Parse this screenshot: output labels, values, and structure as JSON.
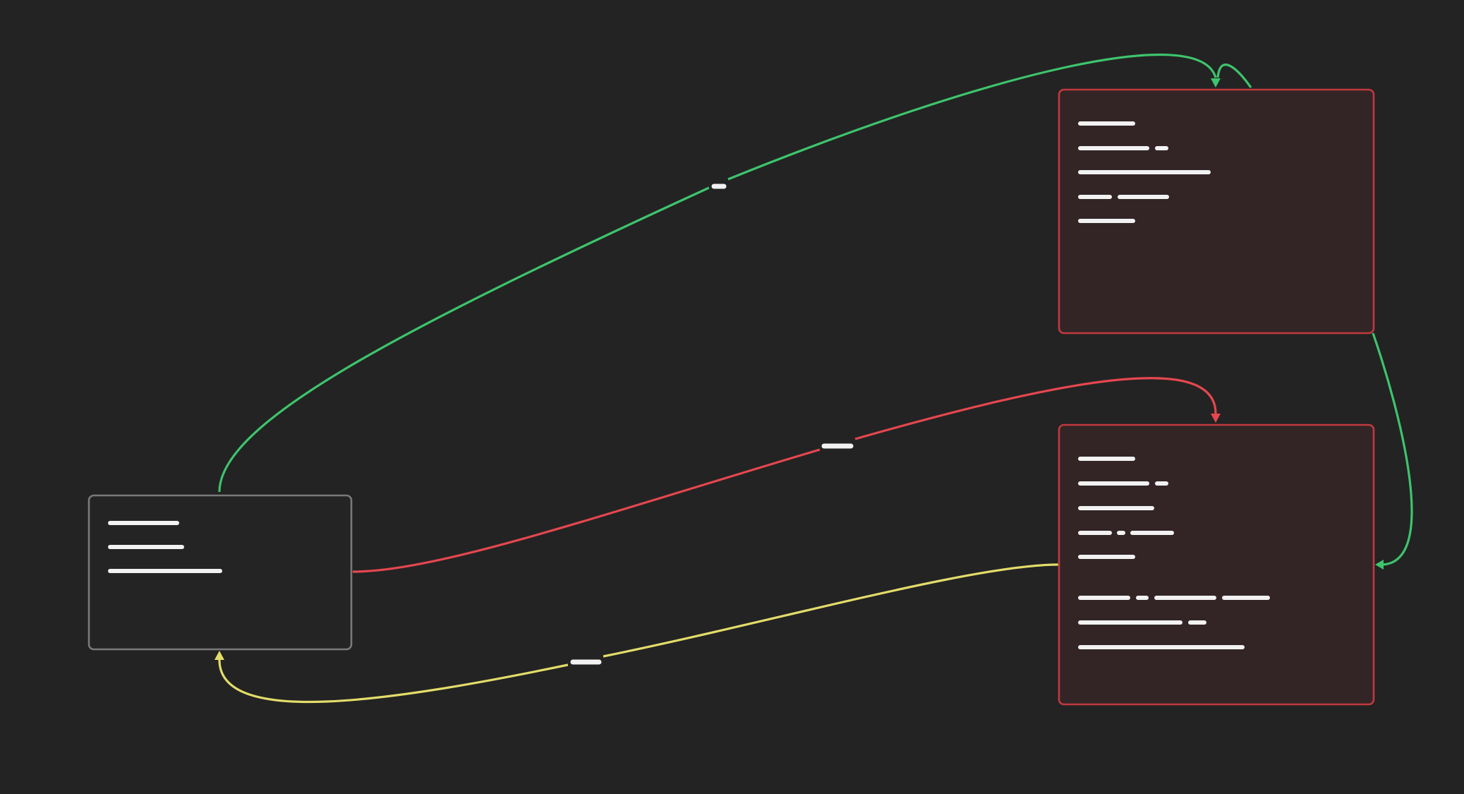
{
  "canvas": {
    "background": "#232323"
  },
  "colors": {
    "node_plain_border": "#7a7a7a",
    "node_plain_fill": "#242424",
    "node_red_border": "#c0393e",
    "node_red_fill": "#332526",
    "edge_green": "#3ec46d",
    "edge_red": "#e5474f",
    "edge_yellow": "#e3dc6a",
    "text_placeholder": "#f2f2f2"
  },
  "nodes": [
    {
      "id": "node-left",
      "style": "plain",
      "text_lines": 3
    },
    {
      "id": "node-top-right",
      "style": "red",
      "text_lines": 5
    },
    {
      "id": "node-bottom-right",
      "style": "red",
      "text_lines": 8
    }
  ],
  "edges": [
    {
      "id": "edge-left-to-top-right",
      "from": "node-left",
      "to": "node-top-right",
      "color": "green",
      "has_label": true
    },
    {
      "id": "edge-top-right-self-loop",
      "from": "node-top-right",
      "to": "node-top-right",
      "color": "green",
      "has_label": false
    },
    {
      "id": "edge-top-right-to-bottom-right",
      "from": "node-top-right",
      "to": "node-bottom-right",
      "color": "green",
      "has_label": false
    },
    {
      "id": "edge-left-to-bottom-right",
      "from": "node-left",
      "to": "node-bottom-right",
      "color": "red",
      "has_label": true
    },
    {
      "id": "edge-bottom-right-to-left",
      "from": "node-bottom-right",
      "to": "node-left",
      "color": "yellow",
      "has_label": true
    }
  ]
}
